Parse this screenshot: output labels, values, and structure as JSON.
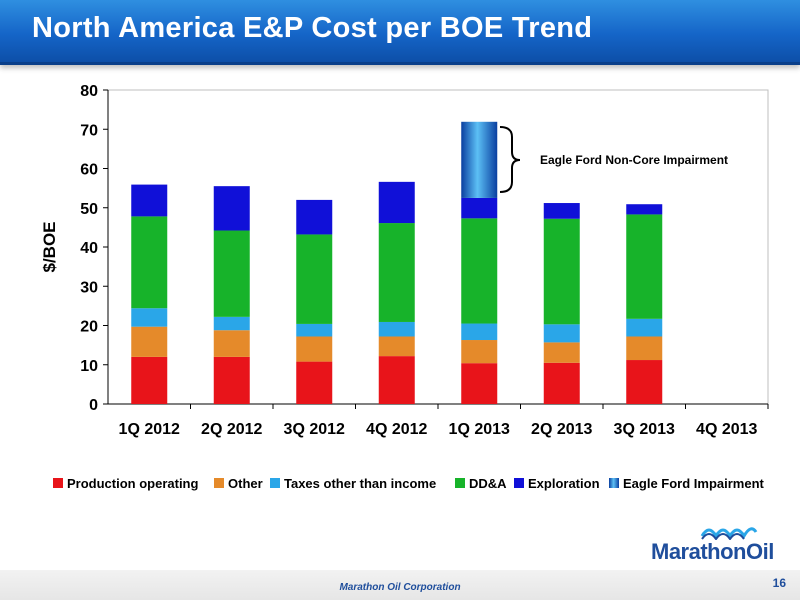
{
  "header": {
    "title": "North America E&P Cost per BOE Trend"
  },
  "footer": {
    "company": "Marathon Oil Corporation",
    "page_number": "16"
  },
  "logo": {
    "text": "MarathonOil",
    "mark": "wave-icon"
  },
  "colors": {
    "production_operating": "#e8141a",
    "other": "#e58a2a",
    "taxes": "#2aa6e8",
    "dda": "#17b32a",
    "exploration": "#1010d8",
    "eagle_ford_impairment": "#1070c8",
    "brand_blue": "#1f4e9c"
  },
  "annotation": {
    "text": "Eagle Ford Non-Core Impairment"
  },
  "chart_data": {
    "type": "bar",
    "stacked": true,
    "ylabel": "$/BOE",
    "xlabel": "",
    "ylim": [
      0,
      80
    ],
    "yticks": [
      0,
      10,
      20,
      30,
      40,
      50,
      60,
      70,
      80
    ],
    "grid": false,
    "legend_position": "bottom",
    "categories": [
      "1Q 2012",
      "2Q 2012",
      "3Q 2012",
      "4Q 2012",
      "1Q 2013",
      "2Q 2013",
      "3Q 2013",
      "4Q 2013"
    ],
    "series": [
      {
        "name": "Production operating",
        "color": "#e8141a",
        "values": [
          12.0,
          12.0,
          10.8,
          12.2,
          10.4,
          10.5,
          11.2,
          null
        ]
      },
      {
        "name": "Other",
        "color": "#e58a2a",
        "values": [
          7.7,
          6.8,
          6.4,
          5.0,
          5.9,
          5.2,
          6.0,
          null
        ]
      },
      {
        "name": "Taxes other than income",
        "color": "#2aa6e8",
        "values": [
          4.7,
          3.4,
          3.2,
          3.7,
          4.2,
          4.6,
          4.5,
          null
        ]
      },
      {
        "name": "DD&A",
        "color": "#17b32a",
        "values": [
          23.4,
          22.0,
          22.8,
          25.2,
          26.8,
          26.9,
          26.6,
          null
        ]
      },
      {
        "name": "Exploration",
        "color": "#1010d8",
        "values": [
          8.1,
          11.3,
          8.8,
          10.5,
          5.2,
          4.0,
          2.6,
          null
        ]
      },
      {
        "name": "Eagle Ford Impairment",
        "color": "#1070c8",
        "values": [
          0,
          0,
          0,
          0,
          19.4,
          0,
          0,
          null
        ]
      }
    ]
  }
}
